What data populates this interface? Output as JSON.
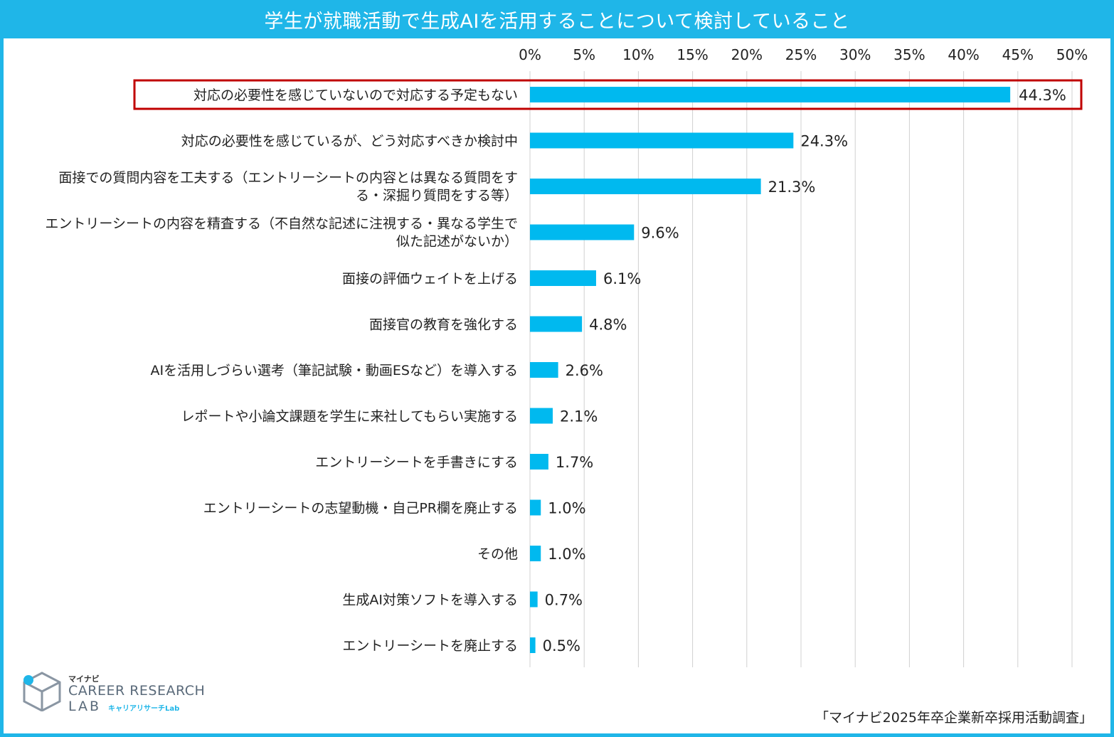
{
  "title": "学生が就職活動で生成AIを活用することについて検討していること",
  "source": "「マイナビ2025年卒企業新卒採用活動調査」",
  "logo": {
    "mynavi": "マイナビ",
    "line1": "CAREER RESEARCH",
    "line2": "LAB",
    "sub": "キャリアリサーチLab"
  },
  "colors": {
    "bar": "#00b9ef",
    "header": "#1fb6e8",
    "highlight": "#c00000",
    "grid": "#d0d0d0"
  },
  "chart_data": {
    "type": "bar",
    "orientation": "horizontal",
    "xlim": [
      0,
      50
    ],
    "ticks": [
      "0%",
      "5%",
      "10%",
      "15%",
      "20%",
      "25%",
      "30%",
      "35%",
      "40%",
      "45%",
      "50%"
    ],
    "tick_values": [
      0,
      5,
      10,
      15,
      20,
      25,
      30,
      35,
      40,
      45,
      50
    ],
    "grid": true,
    "highlighted_index": 0,
    "categories": [
      [
        "対応の必要性を感じていないので対応する予定もない"
      ],
      [
        "対応の必要性を感じているが、どう対応すべきか検討中"
      ],
      [
        "面接での質問内容を工夫する（エントリーシートの内容とは異なる質問をす",
        "る・深掘り質問をする等）"
      ],
      [
        "エントリーシートの内容を精査する（不自然な記述に注視する・異なる学生で",
        "似た記述がないか）"
      ],
      [
        "面接の評価ウェイトを上げる"
      ],
      [
        "面接官の教育を強化する"
      ],
      [
        "AIを活用しづらい選考（筆記試験・動画ESなど）を導入する"
      ],
      [
        "レポートや小論文課題を学生に来社してもらい実施する"
      ],
      [
        "エントリーシートを手書きにする"
      ],
      [
        "エントリーシートの志望動機・自己PR欄を廃止する"
      ],
      [
        "その他"
      ],
      [
        "生成AI対策ソフトを導入する"
      ],
      [
        "エントリーシートを廃止する"
      ]
    ],
    "values": [
      44.3,
      24.3,
      21.3,
      9.6,
      6.1,
      4.8,
      2.6,
      2.1,
      1.7,
      1.0,
      1.0,
      0.7,
      0.5
    ],
    "value_labels": [
      "44.3%",
      "24.3%",
      "21.3%",
      "9.6%",
      "6.1%",
      "4.8%",
      "2.6%",
      "2.1%",
      "1.7%",
      "1.0%",
      "1.0%",
      "0.7%",
      "0.5%"
    ]
  }
}
